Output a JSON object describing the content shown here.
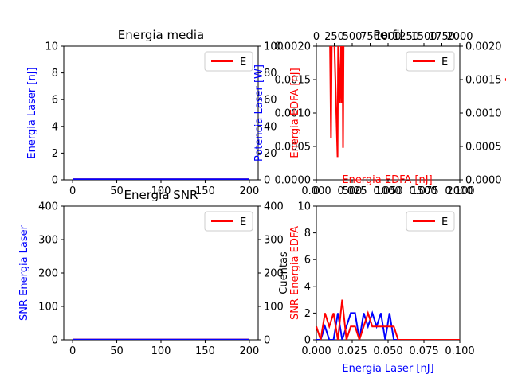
{
  "chart_data": [
    {
      "type": "line",
      "title": "Energia media",
      "ylabel": "Energia Laser [nJ]",
      "ylabel_right": "Potencia Laser [W]",
      "xlim": [
        -10,
        210
      ],
      "ylim": [
        0,
        10
      ],
      "ylim_right": [
        0,
        100
      ],
      "xticks": [
        "0",
        "50",
        "100",
        "150",
        "200"
      ],
      "yticks": [
        "0",
        "2",
        "4",
        "6",
        "8",
        "10"
      ],
      "yticks_right": [
        "0",
        "20",
        "40",
        "60",
        "80",
        "100"
      ],
      "legend": [
        "E"
      ],
      "legend_position": "top-right",
      "series": [
        {
          "name": "E",
          "color": "#ff0000",
          "x": [
            0,
            200
          ],
          "y": [
            0.05,
            0.05
          ]
        },
        {
          "color": "#0000ff",
          "x": [
            0,
            200
          ],
          "y": [
            0.04,
            0.04
          ]
        }
      ]
    },
    {
      "type": "line",
      "title": "Perfil",
      "ylabel": "Energia EDFA [nJ]",
      "xlabel_top": "Energia EDFA [nJ]",
      "xlim": [
        0,
        2000
      ],
      "ylim": [
        0,
        0.002
      ],
      "xticks": [
        "0.000",
        "0.025",
        "0.050",
        "0.075",
        "0.100"
      ],
      "xticks_top": [
        "0",
        "250",
        "500",
        "750",
        "1000",
        "1250",
        "1500",
        "1750",
        "2000"
      ],
      "xticks_bottom_right": [
        "0",
        "500",
        "1000",
        "1500",
        "2000"
      ],
      "yticks": [
        "0.0000",
        "0.0005",
        "0.0010",
        "0.0015",
        "0.0020"
      ],
      "yticks_right": [
        "0.0000",
        "0.0005",
        "0.0010",
        "0.0015",
        "0.0020"
      ],
      "ylabel_right_glyph": "-",
      "legend": [
        "E"
      ],
      "legend_position": "top-right",
      "series": [
        {
          "name": "E",
          "color": "#ff0000",
          "x": [
            190,
            205,
            215,
            250,
            295,
            305,
            330,
            345,
            355,
            365,
            372,
            380,
            390,
            400,
            410,
            420,
            430
          ],
          "y": [
            0.0021,
            0.00062,
            0.0021,
            0.0021,
            0.00034,
            0.0021,
            0.00115,
            0.0021,
            0.00115,
            0.0021,
            0.00048,
            0.0021,
            0.0021,
            0.0021,
            0.0021,
            0.0021,
            0.0021
          ]
        }
      ]
    },
    {
      "type": "line",
      "title": "Energia SNR",
      "ylabel": "SNR Energia Laser",
      "ylabel_right": "Cuentas",
      "xlim": [
        -10,
        210
      ],
      "ylim": [
        0,
        400
      ],
      "ylim_right": [
        0,
        400
      ],
      "xticks": [
        "0",
        "50",
        "100",
        "150",
        "200"
      ],
      "yticks": [
        "0",
        "100",
        "200",
        "300",
        "400"
      ],
      "yticks_right": [
        "0",
        "100",
        "200",
        "300",
        "400"
      ],
      "legend": [
        "E"
      ],
      "legend_position": "top-right",
      "series": [
        {
          "name": "E",
          "color": "#ff0000",
          "x": [
            0,
            200
          ],
          "y": [
            1,
            1
          ]
        },
        {
          "color": "#0000ff",
          "x": [
            0,
            200
          ],
          "y": [
            0.8,
            0.8
          ]
        }
      ]
    },
    {
      "type": "line",
      "ylabel": "SNR Energia EDFA",
      "xlabel": "Energia Laser [nJ]",
      "xlim": [
        0,
        0.1
      ],
      "ylim": [
        0,
        10
      ],
      "xticks": [
        "0.000",
        "0.025",
        "0.050",
        "0.075",
        "0.100"
      ],
      "yticks": [
        "0",
        "2",
        "4",
        "6",
        "8",
        "10"
      ],
      "legend": [
        "E"
      ],
      "legend_position": "top-right",
      "series": [
        {
          "name": "E",
          "color": "#ff0000",
          "x": [
            0,
            0.003,
            0.006,
            0.009,
            0.012,
            0.015,
            0.018,
            0.021,
            0.024,
            0.027,
            0.03,
            0.033,
            0.036,
            0.039,
            0.042,
            0.045,
            0.048,
            0.051,
            0.054,
            0.057,
            0.06,
            0.1
          ],
          "y": [
            1,
            0,
            2,
            1,
            2,
            0,
            3,
            0,
            1,
            1,
            0,
            1,
            2,
            1,
            1,
            1,
            1,
            1,
            1,
            0,
            0,
            0
          ]
        },
        {
          "color": "#0000ff",
          "x": [
            0,
            0.003,
            0.006,
            0.009,
            0.012,
            0.015,
            0.018,
            0.021,
            0.024,
            0.027,
            0.03,
            0.033,
            0.036,
            0.039,
            0.042,
            0.045,
            0.048,
            0.051,
            0.054,
            0.057,
            0.06,
            0.1
          ],
          "y": [
            0,
            0,
            1,
            0,
            0,
            2,
            0,
            1,
            2,
            2,
            0,
            2,
            1,
            2,
            1,
            2,
            0,
            2,
            0,
            0,
            0,
            0
          ]
        }
      ]
    }
  ]
}
